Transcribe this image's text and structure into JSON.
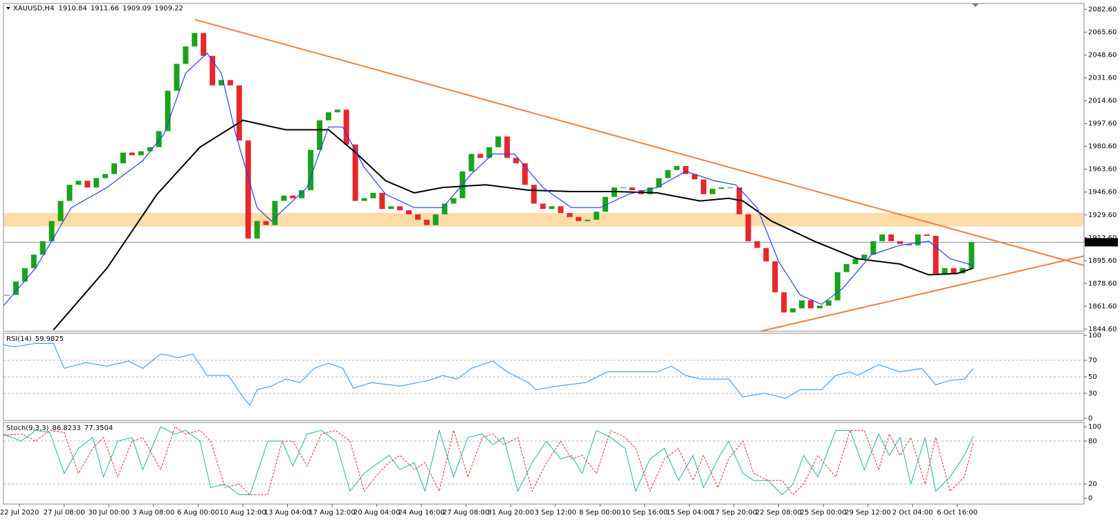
{
  "chart_data": [
    {
      "type": "candlestick",
      "symbol": "XAUUSD,H4",
      "ohlc": {
        "open": 1910.84,
        "high": 1911.66,
        "low": 1909.09,
        "close": 1909.22
      },
      "up_color": "#1aa31a",
      "down_color": "#e8262b",
      "close": [
        1870,
        1880,
        1890,
        1900,
        1910,
        1925,
        1940,
        1952,
        1955,
        1950,
        1957,
        1960,
        1968,
        1976,
        1974,
        1977,
        1980,
        1992,
        2022,
        2042,
        2055,
        2065,
        2048,
        2026,
        2030,
        2026,
        1985,
        1912,
        1925,
        1922,
        1940,
        1944,
        1942,
        1948,
        1978,
        2000,
        2006,
        2008,
        1982,
        1940,
        1942,
        1946,
        1934,
        1936,
        1933,
        1930,
        1926,
        1922,
        1930,
        1938,
        1942,
        1962,
        1975,
        1972,
        1980,
        1988,
        1972,
        1968,
        1952,
        1938,
        1934,
        1936,
        1931,
        1928,
        1925,
        1926,
        1932,
        1943,
        1950,
        1950,
        1948,
        1945,
        1950,
        1957,
        1963,
        1966,
        1960,
        1956,
        1945,
        1949,
        1950,
        1950,
        1930,
        1910,
        1905,
        1895,
        1872,
        1857,
        1860,
        1866,
        1860,
        1862,
        1866,
        1887,
        1893,
        1897,
        1900,
        1910,
        1915,
        1910,
        1908,
        1907,
        1915,
        1914,
        1885,
        1890,
        1886,
        1890,
        1909.22
      ],
      "ma_slow": {
        "color": "#000000",
        "x": [
          5.2,
          11.2,
          16.8,
          21.6,
          26.4,
          31.2,
          36,
          39.2,
          42.4,
          45.6,
          48.8,
          53.6,
          58.4,
          63.2,
          68,
          72.8,
          77.6,
          80.8,
          82.4,
          85.6,
          90.4,
          95.2,
          100,
          103.2,
          106.4,
          108.2
        ],
        "values": [
          1844,
          1890,
          1945,
          1980,
          2000,
          1993,
          1993,
          1975,
          1955,
          1946,
          1950,
          1952,
          1948,
          1947,
          1947,
          1946,
          1940,
          1942,
          1940,
          1925,
          1910,
          1897,
          1893,
          1885,
          1886,
          1890
        ]
      },
      "ma_fast": {
        "color": "#1f3fff",
        "x": [
          -0.4,
          3.2,
          7.2,
          11.2,
          15.2,
          17.6,
          20,
          22.4,
          24,
          25.6,
          28,
          29.6,
          31.2,
          33.6,
          36,
          37.6,
          40,
          42.4,
          45.6,
          48.8,
          52,
          54.4,
          56.8,
          60,
          63.2,
          66.4,
          69.6,
          72.8,
          76,
          79.2,
          81.6,
          84,
          86.4,
          88.8,
          91.2,
          93.6,
          96.8,
          100,
          103.2,
          105.6,
          108.2
        ],
        "values": [
          1862,
          1890,
          1935,
          1950,
          1970,
          1990,
          2035,
          2050,
          2035,
          1990,
          1935,
          1925,
          1935,
          1950,
          1995,
          1995,
          1965,
          1945,
          1935,
          1935,
          1960,
          1975,
          1975,
          1950,
          1935,
          1935,
          1945,
          1950,
          1962,
          1955,
          1952,
          1935,
          1895,
          1870,
          1863,
          1875,
          1900,
          1907,
          1910,
          1897,
          1892
        ]
      },
      "trendlines": [
        {
          "color": "#f47c3c",
          "x": [
            21.04,
            120.6
          ],
          "values": [
            2075,
            1892
          ]
        },
        {
          "color": "#f47c3c",
          "x": [
            84.4,
            120.6
          ],
          "values": [
            1843,
            1899
          ]
        }
      ],
      "zone": {
        "values": [
          1921,
          1931
        ],
        "color": "#fddcaa"
      },
      "xlim": [
        -0.4,
        120.6
      ],
      "ylim": [
        1843,
        2087
      ],
      "yticks": [
        {
          "value": 2082.6,
          "label": "2082.60"
        },
        {
          "value": 2065.6,
          "label": "2065.60"
        },
        {
          "value": 2048.6,
          "label": "2048.60"
        },
        {
          "value": 2031.6,
          "label": "2031.60"
        },
        {
          "value": 2014.6,
          "label": "2014.60"
        },
        {
          "value": 1997.6,
          "label": "1997.60"
        },
        {
          "value": 1980.6,
          "label": "1980.60"
        },
        {
          "value": 1963.6,
          "label": "1963.60"
        },
        {
          "value": 1946.6,
          "label": "1946.60"
        },
        {
          "value": 1929.6,
          "label": "1929.60"
        },
        {
          "value": 1912.6,
          "label": "1912.60"
        },
        {
          "value": 1895.6,
          "label": "1895.60"
        },
        {
          "value": 1878.6,
          "label": "1878.60"
        },
        {
          "value": 1861.6,
          "label": "1861.60"
        },
        {
          "value": 1844.6,
          "label": "1844.60"
        }
      ],
      "xticks": [
        {
          "value": 1.4,
          "label": "22 Jul 2020"
        },
        {
          "value": 6.4,
          "label": "27 Jul 08:00"
        },
        {
          "value": 11.4,
          "label": "30 Jul 00:00"
        },
        {
          "value": 16.4,
          "label": "3 Aug 08:00"
        },
        {
          "value": 21.4,
          "label": "6 Aug 00:00"
        },
        {
          "value": 26.4,
          "label": "10 Aug 12:00"
        },
        {
          "value": 31.4,
          "label": "13 Aug 04:00"
        },
        {
          "value": 36.4,
          "label": "17 Aug 12:00"
        },
        {
          "value": 41.4,
          "label": "20 Aug 04:00"
        },
        {
          "value": 46.4,
          "label": "24 Aug 16:00"
        },
        {
          "value": 51.4,
          "label": "27 Aug 08:00"
        },
        {
          "value": 56.4,
          "label": "31 Aug 20:00"
        },
        {
          "value": 61.4,
          "label": "3 Sep 12:00"
        },
        {
          "value": 66.4,
          "label": "8 Sep 00:00"
        },
        {
          "value": 71.4,
          "label": "10 Sep 16:00"
        },
        {
          "value": 76.4,
          "label": "15 Sep 04:00"
        },
        {
          "value": 81.4,
          "label": "17 Sep 20:00"
        },
        {
          "value": 86.4,
          "label": "22 Sep 08:00"
        },
        {
          "value": 91.4,
          "label": "25 Sep 00:00"
        },
        {
          "value": 96.4,
          "label": "29 Sep 12:00"
        },
        {
          "value": 101.4,
          "label": "2 Oct 04:00"
        },
        {
          "value": 106.4,
          "label": "6 Oct 16:00"
        }
      ]
    },
    {
      "type": "line",
      "title": "RSI(14)",
      "readings": [
        59.9825
      ],
      "series": [
        {
          "color": "#1e90ff",
          "dashed": false,
          "x": [
            -0.4,
            0.8,
            3.2,
            5.2,
            6.4,
            8.8,
            11.2,
            13.6,
            15.2,
            17.2,
            19.2,
            20.8,
            22.4,
            24.8,
            26.4,
            27.2,
            28,
            29.6,
            31.2,
            32.8,
            34.4,
            36,
            37.6,
            38.8,
            40.8,
            44,
            47.2,
            48.8,
            50.4,
            52,
            54.4,
            56,
            58.4,
            59.2,
            61.6,
            64.8,
            67.2,
            69.6,
            72.8,
            74.4,
            76,
            77.6,
            80.8,
            82.4,
            84.8,
            87.2,
            88.8,
            91.2,
            92.8,
            94.4,
            95.2,
            97.6,
            100,
            102.4,
            104,
            105.6,
            107.2,
            108.2
          ],
          "values": [
            88.8,
            86.2,
            90.5,
            90.5,
            60.3,
            67.2,
            62.9,
            69.0,
            60.3,
            77.6,
            73.3,
            77.6,
            51.7,
            51.7,
            25.9,
            15.5,
            34.5,
            38.8,
            47.4,
            43.1,
            60.3,
            66.4,
            60.3,
            36.2,
            43.1,
            38.8,
            45.7,
            51.7,
            47.4,
            60.3,
            69.0,
            56.0,
            43.1,
            34.5,
            38.8,
            43.1,
            56.0,
            56.0,
            56.0,
            62.9,
            51.7,
            47.4,
            47.4,
            25.9,
            30.2,
            24.1,
            34.5,
            34.5,
            51.7,
            56.0,
            51.7,
            64.7,
            56.0,
            60.3,
            40.5,
            45.7,
            47.4,
            59.98
          ]
        }
      ],
      "ylim": [
        -2.6,
        102.6
      ],
      "yticks": [
        100,
        70,
        50,
        30,
        0
      ],
      "levels": [
        70,
        50,
        30
      ]
    },
    {
      "type": "line",
      "title": "Stoch(9,3,3)",
      "readings": [
        86.8233,
        77.3504
      ],
      "series": [
        {
          "color": "#20b2aa",
          "dashed": false,
          "x": [
            -0.4,
            1.6,
            3.2,
            4.8,
            6.4,
            8,
            9.6,
            10.8,
            12.4,
            14,
            15.2,
            17.2,
            18.8,
            20,
            21.6,
            22.8,
            24.4,
            26,
            27.2,
            29.2,
            30.8,
            32,
            33.6,
            35.2,
            36.8,
            38.4,
            40,
            41.6,
            42.8,
            44,
            45.6,
            46.8,
            48.4,
            50,
            51.6,
            53.2,
            54.4,
            55.6,
            57.2,
            58.8,
            60.4,
            62,
            63.2,
            64.4,
            66,
            67.6,
            69.2,
            70.4,
            72,
            73.6,
            75.2,
            76.8,
            78,
            79.6,
            80.8,
            82.4,
            83.6,
            85.2,
            86.8,
            88,
            89.2,
            90.8,
            92.8,
            94.4,
            96,
            97.6,
            98.8,
            100,
            101.2,
            102.8,
            104,
            105.6,
            107.2,
            108.2
          ],
          "values": [
            90,
            80,
            95,
            92,
            35,
            70,
            85,
            30,
            80,
            85,
            40,
            100,
            90,
            95,
            80,
            15,
            20,
            5,
            5,
            80,
            80,
            45,
            90,
            95,
            80,
            10,
            35,
            50,
            60,
            40,
            50,
            10,
            95,
            30,
            85,
            90,
            75,
            85,
            10,
            50,
            80,
            55,
            60,
            35,
            95,
            85,
            70,
            10,
            55,
            70,
            25,
            60,
            15,
            55,
            80,
            35,
            25,
            25,
            5,
            20,
            60,
            30,
            95,
            95,
            40,
            90,
            60,
            85,
            20,
            85,
            10,
            30,
            60,
            86.82
          ]
        },
        {
          "color": "#e8262b",
          "dashed": true,
          "x": [
            -0.4,
            1.6,
            3.2,
            4.8,
            6.4,
            8,
            9.6,
            10.8,
            12.4,
            14,
            15.2,
            17.2,
            18.8,
            20,
            21.6,
            22.8,
            24.4,
            26,
            27.2,
            29.2,
            30.8,
            32,
            33.6,
            35.2,
            36.8,
            38.4,
            40,
            41.6,
            42.8,
            44,
            45.6,
            46.8,
            48.4,
            50,
            51.6,
            53.2,
            54.4,
            55.6,
            57.2,
            58.8,
            60.4,
            62,
            63.2,
            64.4,
            66,
            67.6,
            69.2,
            70.4,
            72,
            73.6,
            75.2,
            76.8,
            78,
            79.6,
            80.8,
            82.4,
            83.6,
            85.2,
            86.8,
            88,
            89.2,
            90.8,
            92.8,
            94.4,
            96,
            97.6,
            98.8,
            100,
            101.2,
            102.8,
            104,
            105.6,
            107.2,
            108.2
          ],
          "values": [
            88,
            90,
            80,
            95,
            92,
            35,
            70,
            85,
            30,
            80,
            85,
            40,
            100,
            90,
            95,
            80,
            15,
            20,
            5,
            5,
            80,
            80,
            45,
            90,
            95,
            80,
            10,
            35,
            50,
            60,
            40,
            50,
            10,
            95,
            30,
            85,
            90,
            75,
            85,
            10,
            50,
            80,
            55,
            60,
            35,
            95,
            85,
            70,
            10,
            55,
            70,
            25,
            60,
            15,
            55,
            80,
            35,
            25,
            25,
            5,
            20,
            60,
            30,
            95,
            95,
            40,
            90,
            60,
            85,
            20,
            85,
            10,
            30,
            77.35
          ]
        }
      ],
      "ylim": [
        -8,
        106
      ],
      "yticks": [
        100,
        80,
        20,
        0
      ],
      "levels": [
        80,
        20
      ]
    }
  ]
}
